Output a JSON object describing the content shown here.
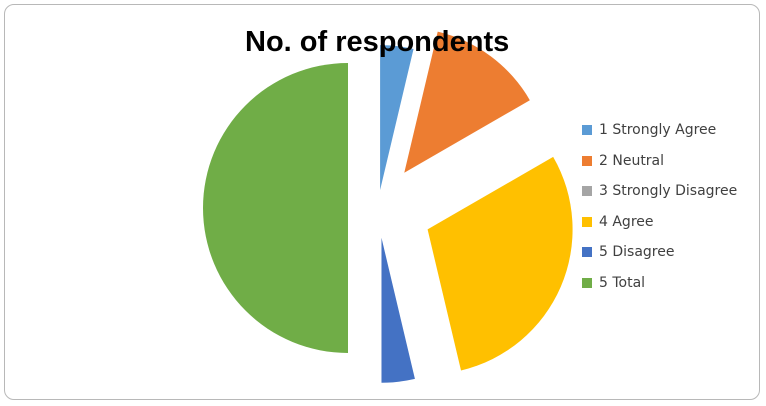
{
  "chart_data": {
    "type": "pie",
    "title": "No. of respondents",
    "categories": [
      "1 Strongly Agree",
      "2 Neutral",
      "3 Strongly Disagree",
      "4 Agree",
      "5 Disagree",
      "5 Total"
    ],
    "values": [
      2,
      7,
      0,
      16,
      2,
      27
    ],
    "colors": [
      "#5b9bd5",
      "#ed7d31",
      "#a5a5a5",
      "#ffc000",
      "#4472c4",
      "#70ad47"
    ],
    "legend_position": "right",
    "exploded": true
  }
}
